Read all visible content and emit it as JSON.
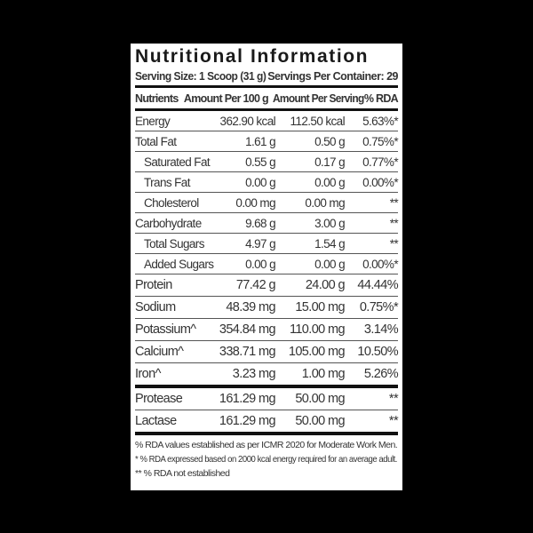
{
  "title": "Nutritional Information",
  "serving_size": "Serving Size: 1 Scoop (31 g)",
  "servings_per_container": "Servings Per Container: 29",
  "headers": [
    "Nutrients",
    "Amount Per 100 g",
    "Amount Per Serving",
    "% RDA"
  ],
  "rows": [
    {
      "name": "Energy",
      "per100": "362.90 kcal",
      "serving": "112.50 kcal",
      "rda": "5.63%*",
      "indent": false
    },
    {
      "name": "Total Fat",
      "per100": "1.61 g",
      "serving": "0.50 g",
      "rda": "0.75%*",
      "indent": false
    },
    {
      "name": "Saturated Fat",
      "per100": "0.55 g",
      "serving": "0.17 g",
      "rda": "0.77%*",
      "indent": true
    },
    {
      "name": "Trans Fat",
      "per100": "0.00 g",
      "serving": "0.00 g",
      "rda": "0.00%*",
      "indent": true
    },
    {
      "name": "Cholesterol",
      "per100": "0.00 mg",
      "serving": "0.00 mg",
      "rda": "**",
      "indent": true
    },
    {
      "name": "Carbohydrate",
      "per100": "9.68 g",
      "serving": "3.00 g",
      "rda": "**",
      "indent": false
    },
    {
      "name": "Total Sugars",
      "per100": "4.97 g",
      "serving": "1.54 g",
      "rda": "**",
      "indent": true
    },
    {
      "name": "Added Sugars",
      "per100": "0.00 g",
      "serving": "0.00 g",
      "rda": "0.00%*",
      "indent": true
    },
    {
      "name": "Protein",
      "per100": "77.42 g",
      "serving": "24.00 g",
      "rda": "44.44%",
      "indent": false
    },
    {
      "name": "Sodium",
      "per100": "48.39 mg",
      "serving": "15.00 mg",
      "rda": "0.75%*",
      "indent": false
    },
    {
      "name": "Potassium^",
      "per100": "354.84 mg",
      "serving": "110.00 mg",
      "rda": "3.14%",
      "indent": false
    },
    {
      "name": "Calcium^",
      "per100": "338.71 mg",
      "serving": "105.00 mg",
      "rda": "10.50%",
      "indent": false
    },
    {
      "name": "Iron^",
      "per100": "3.23 mg",
      "serving": "1.00 mg",
      "rda": "5.26%",
      "indent": false
    }
  ],
  "enzymes": [
    {
      "name": "Protease",
      "per100": "161.29 mg",
      "serving": "50.00 mg",
      "rda": "**"
    },
    {
      "name": "Lactase",
      "per100": "161.29 mg",
      "serving": "50.00 mg",
      "rda": "**"
    }
  ],
  "footnotes": [
    "% RDA values established as per ICMR 2020 for Moderate Work Men.",
    "* % RDA expressed based on 2000 kcal energy required for an average adult.",
    "** % RDA not established"
  ]
}
